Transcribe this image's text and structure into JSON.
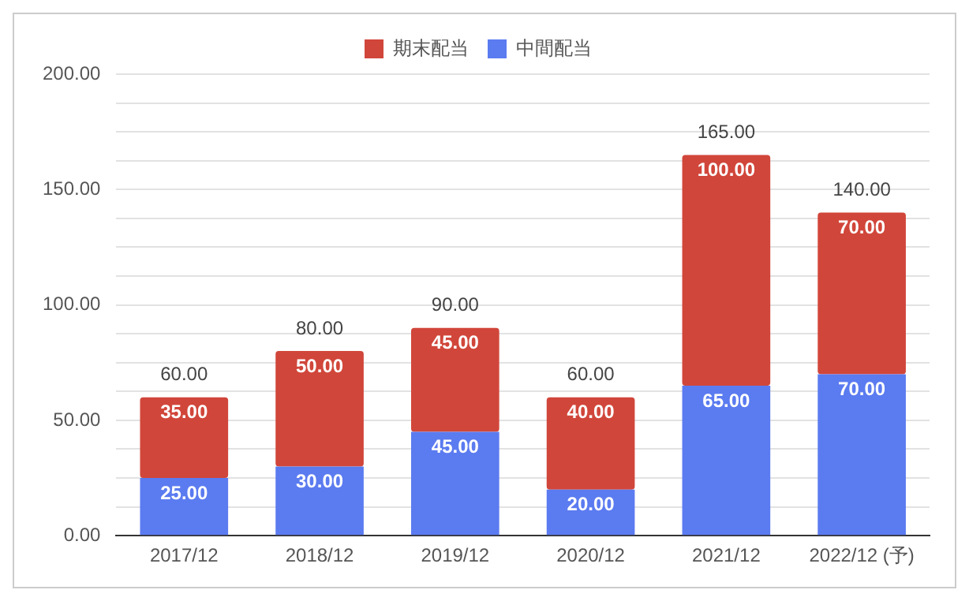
{
  "chart_data": {
    "type": "bar",
    "stacked": true,
    "categories": [
      "2017/12",
      "2018/12",
      "2019/12",
      "2020/12",
      "2021/12",
      "2022/12 (予)"
    ],
    "series": [
      {
        "name": "中間配当",
        "color": "#5b7bf0",
        "values": [
          25,
          30,
          45,
          20,
          65,
          70
        ],
        "value_labels": [
          "25.00",
          "30.00",
          "45.00",
          "20.00",
          "65.00",
          "70.00"
        ]
      },
      {
        "name": "期末配当",
        "color": "#d1463a",
        "values": [
          35,
          50,
          45,
          40,
          100,
          70
        ],
        "value_labels": [
          "35.00",
          "50.00",
          "45.00",
          "40.00",
          "100.00",
          "70.00"
        ]
      }
    ],
    "totals": [
      "60.00",
      "80.00",
      "90.00",
      "60.00",
      "165.00",
      "140.00"
    ],
    "ylim": [
      0,
      200
    ],
    "yticks": [
      {
        "value": 0,
        "label": "0.00"
      },
      {
        "value": 12.5,
        "label": null
      },
      {
        "value": 25,
        "label": null
      },
      {
        "value": 37.5,
        "label": null
      },
      {
        "value": 50,
        "label": "50.00"
      },
      {
        "value": 62.5,
        "label": null
      },
      {
        "value": 75,
        "label": null
      },
      {
        "value": 87.5,
        "label": null
      },
      {
        "value": 100,
        "label": "100.00"
      },
      {
        "value": 112.5,
        "label": null
      },
      {
        "value": 125,
        "label": null
      },
      {
        "value": 137.5,
        "label": null
      },
      {
        "value": 150,
        "label": "150.00"
      },
      {
        "value": 162.5,
        "label": null
      },
      {
        "value": 175,
        "label": null
      },
      {
        "value": 187.5,
        "label": null
      },
      {
        "value": 200,
        "label": "200.00"
      }
    ],
    "grid": "y",
    "legend": "top"
  }
}
